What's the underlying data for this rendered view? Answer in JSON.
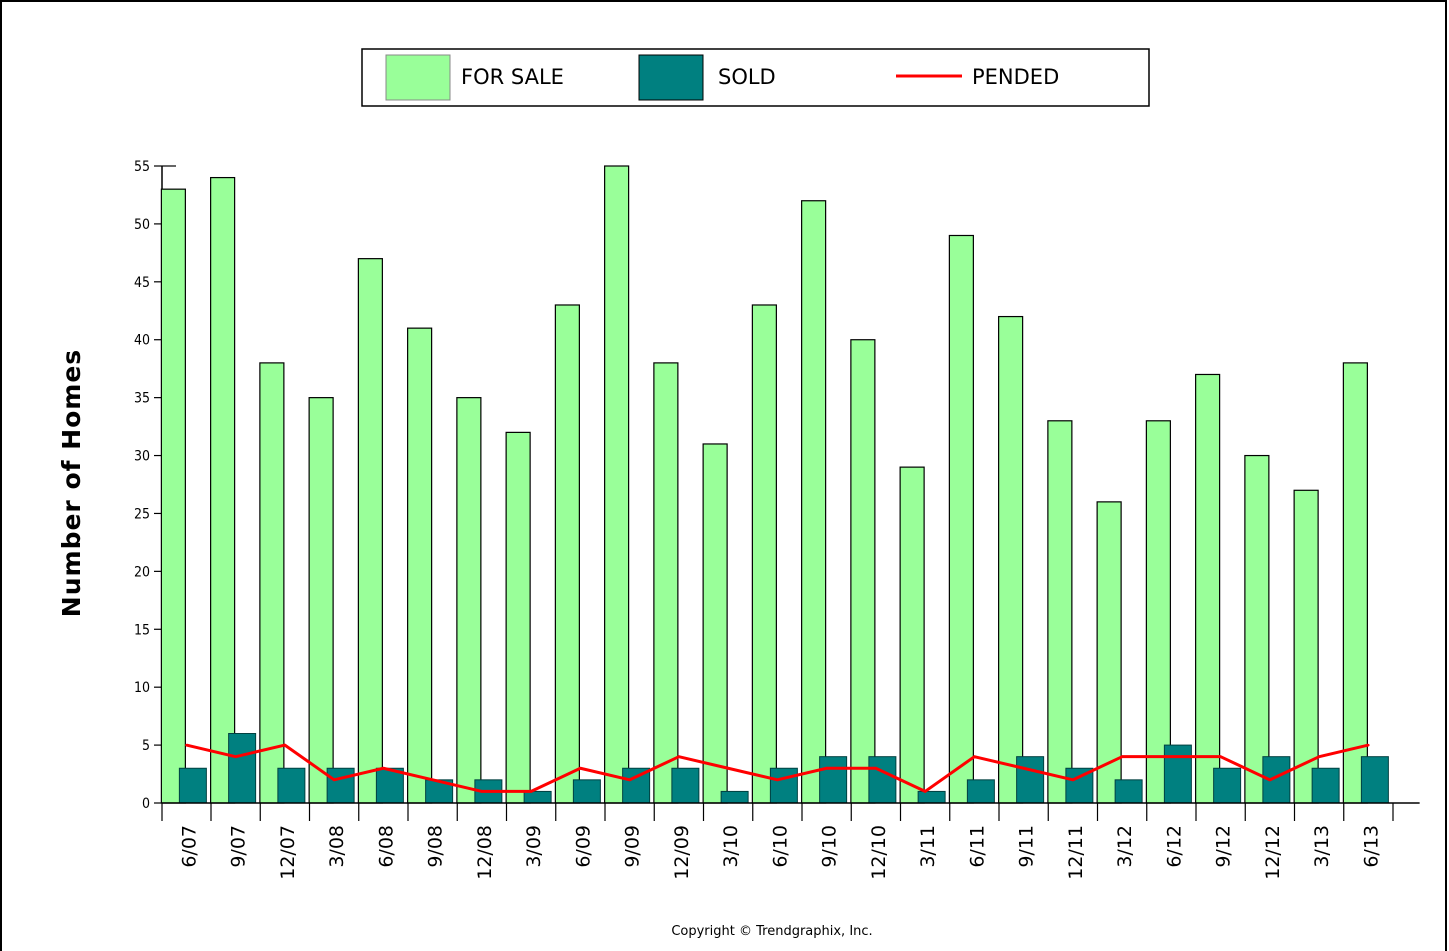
{
  "chart_data": {
    "type": "bar",
    "categories": [
      "6/07",
      "9/07",
      "12/07",
      "3/08",
      "6/08",
      "9/08",
      "12/08",
      "3/09",
      "6/09",
      "9/09",
      "12/09",
      "3/10",
      "6/10",
      "9/10",
      "12/10",
      "3/11",
      "6/11",
      "9/11",
      "12/11",
      "3/12",
      "6/12",
      "9/12",
      "12/12",
      "3/13",
      "6/13"
    ],
    "series": [
      {
        "name": "FOR SALE",
        "kind": "bar",
        "color": "#99ff99",
        "values": [
          53,
          54,
          38,
          35,
          47,
          41,
          35,
          32,
          43,
          55,
          38,
          31,
          43,
          52,
          40,
          29,
          49,
          42,
          33,
          26,
          33,
          37,
          30,
          27,
          38
        ]
      },
      {
        "name": "SOLD",
        "kind": "bar",
        "color": "#008080",
        "values": [
          3,
          6,
          3,
          3,
          3,
          2,
          2,
          1,
          2,
          3,
          3,
          1,
          3,
          4,
          4,
          1,
          2,
          4,
          3,
          2,
          5,
          3,
          4,
          3,
          4
        ]
      },
      {
        "name": "PENDED",
        "kind": "line",
        "color": "#ff0000",
        "values": [
          5,
          4,
          5,
          2,
          3,
          2,
          1,
          1,
          3,
          2,
          4,
          3,
          2,
          3,
          3,
          1,
          4,
          3,
          2,
          4,
          4,
          4,
          2,
          4,
          5
        ]
      }
    ],
    "ylabel": "Number of Homes",
    "xlabel": "",
    "ylim": [
      0,
      55
    ],
    "yticks": [
      0,
      5,
      10,
      15,
      20,
      25,
      30,
      35,
      40,
      45,
      50,
      55
    ],
    "legend_position": "top-center",
    "grid": false,
    "copyright": "Copyright © Trendgraphix, Inc."
  }
}
